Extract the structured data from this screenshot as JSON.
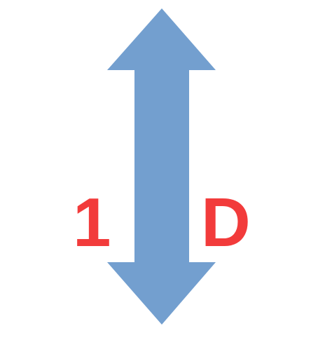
{
  "diagram": {
    "arrow": {
      "icon": "double-headed-vertical-arrow-icon",
      "color": "#739fcf"
    },
    "labels": {
      "left": "1",
      "right": "D",
      "color": "#f23b3b"
    }
  }
}
